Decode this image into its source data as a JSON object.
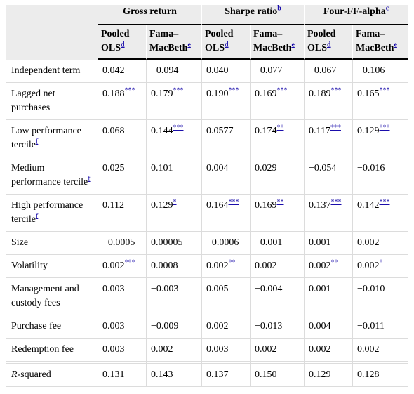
{
  "header": {
    "groups": [
      {
        "label": "Gross return",
        "note": ""
      },
      {
        "label": "Sharpe ratio",
        "note": "b"
      },
      {
        "label": "Four-FF-alpha",
        "note": "c"
      }
    ],
    "subcolumns": [
      {
        "line1": "Pooled",
        "line2": "OLS",
        "note": "d"
      },
      {
        "line1": "Fama–",
        "line2": "MacBeth",
        "note": "e"
      },
      {
        "line1": "Pooled",
        "line2": "OLS",
        "note": "d"
      },
      {
        "line1": "Fama–",
        "line2": "MacBeth",
        "note": "e"
      },
      {
        "line1": "Pooled",
        "line2": "OLS",
        "note": "d"
      },
      {
        "line1": "Fama–",
        "line2": "MacBeth",
        "note": "e"
      }
    ]
  },
  "rows": [
    {
      "label": "Independent term",
      "label_note": "",
      "cells": [
        {
          "v": "0.042",
          "s": ""
        },
        {
          "v": "−0.094",
          "s": ""
        },
        {
          "v": "0.040",
          "s": ""
        },
        {
          "v": "−0.077",
          "s": ""
        },
        {
          "v": "−0.067",
          "s": ""
        },
        {
          "v": "−0.106",
          "s": ""
        }
      ]
    },
    {
      "label": "Lagged net purchases",
      "label_note": "",
      "cells": [
        {
          "v": "0.188",
          "s": "***"
        },
        {
          "v": "0.179",
          "s": "***"
        },
        {
          "v": "0.190",
          "s": "***"
        },
        {
          "v": "0.169",
          "s": "***"
        },
        {
          "v": "0.189",
          "s": "***"
        },
        {
          "v": "0.165",
          "s": "***"
        }
      ]
    },
    {
      "label": "Low performance tercile",
      "label_note": "f",
      "cells": [
        {
          "v": "0.068",
          "s": ""
        },
        {
          "v": "0.144",
          "s": "***"
        },
        {
          "v": "0.0577",
          "s": ""
        },
        {
          "v": "0.174",
          "s": "**"
        },
        {
          "v": "0.117",
          "s": "***"
        },
        {
          "v": "0.129",
          "s": "***"
        }
      ]
    },
    {
      "label": "Medium performance tercile",
      "label_note": "f",
      "cells": [
        {
          "v": "0.025",
          "s": ""
        },
        {
          "v": "0.101",
          "s": ""
        },
        {
          "v": "0.004",
          "s": ""
        },
        {
          "v": "0.029",
          "s": ""
        },
        {
          "v": "−0.054",
          "s": ""
        },
        {
          "v": "−0.016",
          "s": ""
        }
      ]
    },
    {
      "label": "High performance tercile",
      "label_note": "f",
      "cells": [
        {
          "v": "0.112",
          "s": ""
        },
        {
          "v": "0.129",
          "s": "*"
        },
        {
          "v": "0.164",
          "s": "***"
        },
        {
          "v": "0.169",
          "s": "**"
        },
        {
          "v": "0.137",
          "s": "***"
        },
        {
          "v": "0.142",
          "s": "***"
        }
      ]
    },
    {
      "label": "Size",
      "label_note": "",
      "cells": [
        {
          "v": "−0.0005",
          "s": ""
        },
        {
          "v": "0.00005",
          "s": ""
        },
        {
          "v": "−0.0006",
          "s": ""
        },
        {
          "v": "−0.001",
          "s": ""
        },
        {
          "v": "0.001",
          "s": ""
        },
        {
          "v": "0.002",
          "s": ""
        }
      ]
    },
    {
      "label": "Volatility",
      "label_note": "",
      "cells": [
        {
          "v": "0.002",
          "s": "***"
        },
        {
          "v": "0.0008",
          "s": ""
        },
        {
          "v": "0.002",
          "s": "**"
        },
        {
          "v": "0.002",
          "s": ""
        },
        {
          "v": "0.002",
          "s": "**"
        },
        {
          "v": "0.002",
          "s": "*"
        }
      ]
    },
    {
      "label": "Management and custody fees",
      "label_note": "",
      "cells": [
        {
          "v": "0.003",
          "s": ""
        },
        {
          "v": "−0.003",
          "s": ""
        },
        {
          "v": "0.005",
          "s": ""
        },
        {
          "v": "−0.004",
          "s": ""
        },
        {
          "v": "0.001",
          "s": ""
        },
        {
          "v": "−0.010",
          "s": ""
        }
      ]
    },
    {
      "label": "Purchase fee",
      "label_note": "",
      "cells": [
        {
          "v": "0.003",
          "s": ""
        },
        {
          "v": "−0.009",
          "s": ""
        },
        {
          "v": "0.002",
          "s": ""
        },
        {
          "v": "−0.013",
          "s": ""
        },
        {
          "v": "0.004",
          "s": ""
        },
        {
          "v": "−0.011",
          "s": ""
        }
      ]
    },
    {
      "label": "Redemption fee",
      "label_note": "",
      "cells": [
        {
          "v": "0.003",
          "s": ""
        },
        {
          "v": "0.002",
          "s": ""
        },
        {
          "v": "0.003",
          "s": ""
        },
        {
          "v": "0.002",
          "s": ""
        },
        {
          "v": "0.002",
          "s": ""
        },
        {
          "v": "0.002",
          "s": ""
        }
      ]
    }
  ],
  "rsquared": {
    "label_italic": "R",
    "label_rest": "-squared",
    "cells": [
      "0.131",
      "0.143",
      "0.137",
      "0.150",
      "0.129",
      "0.128"
    ]
  }
}
